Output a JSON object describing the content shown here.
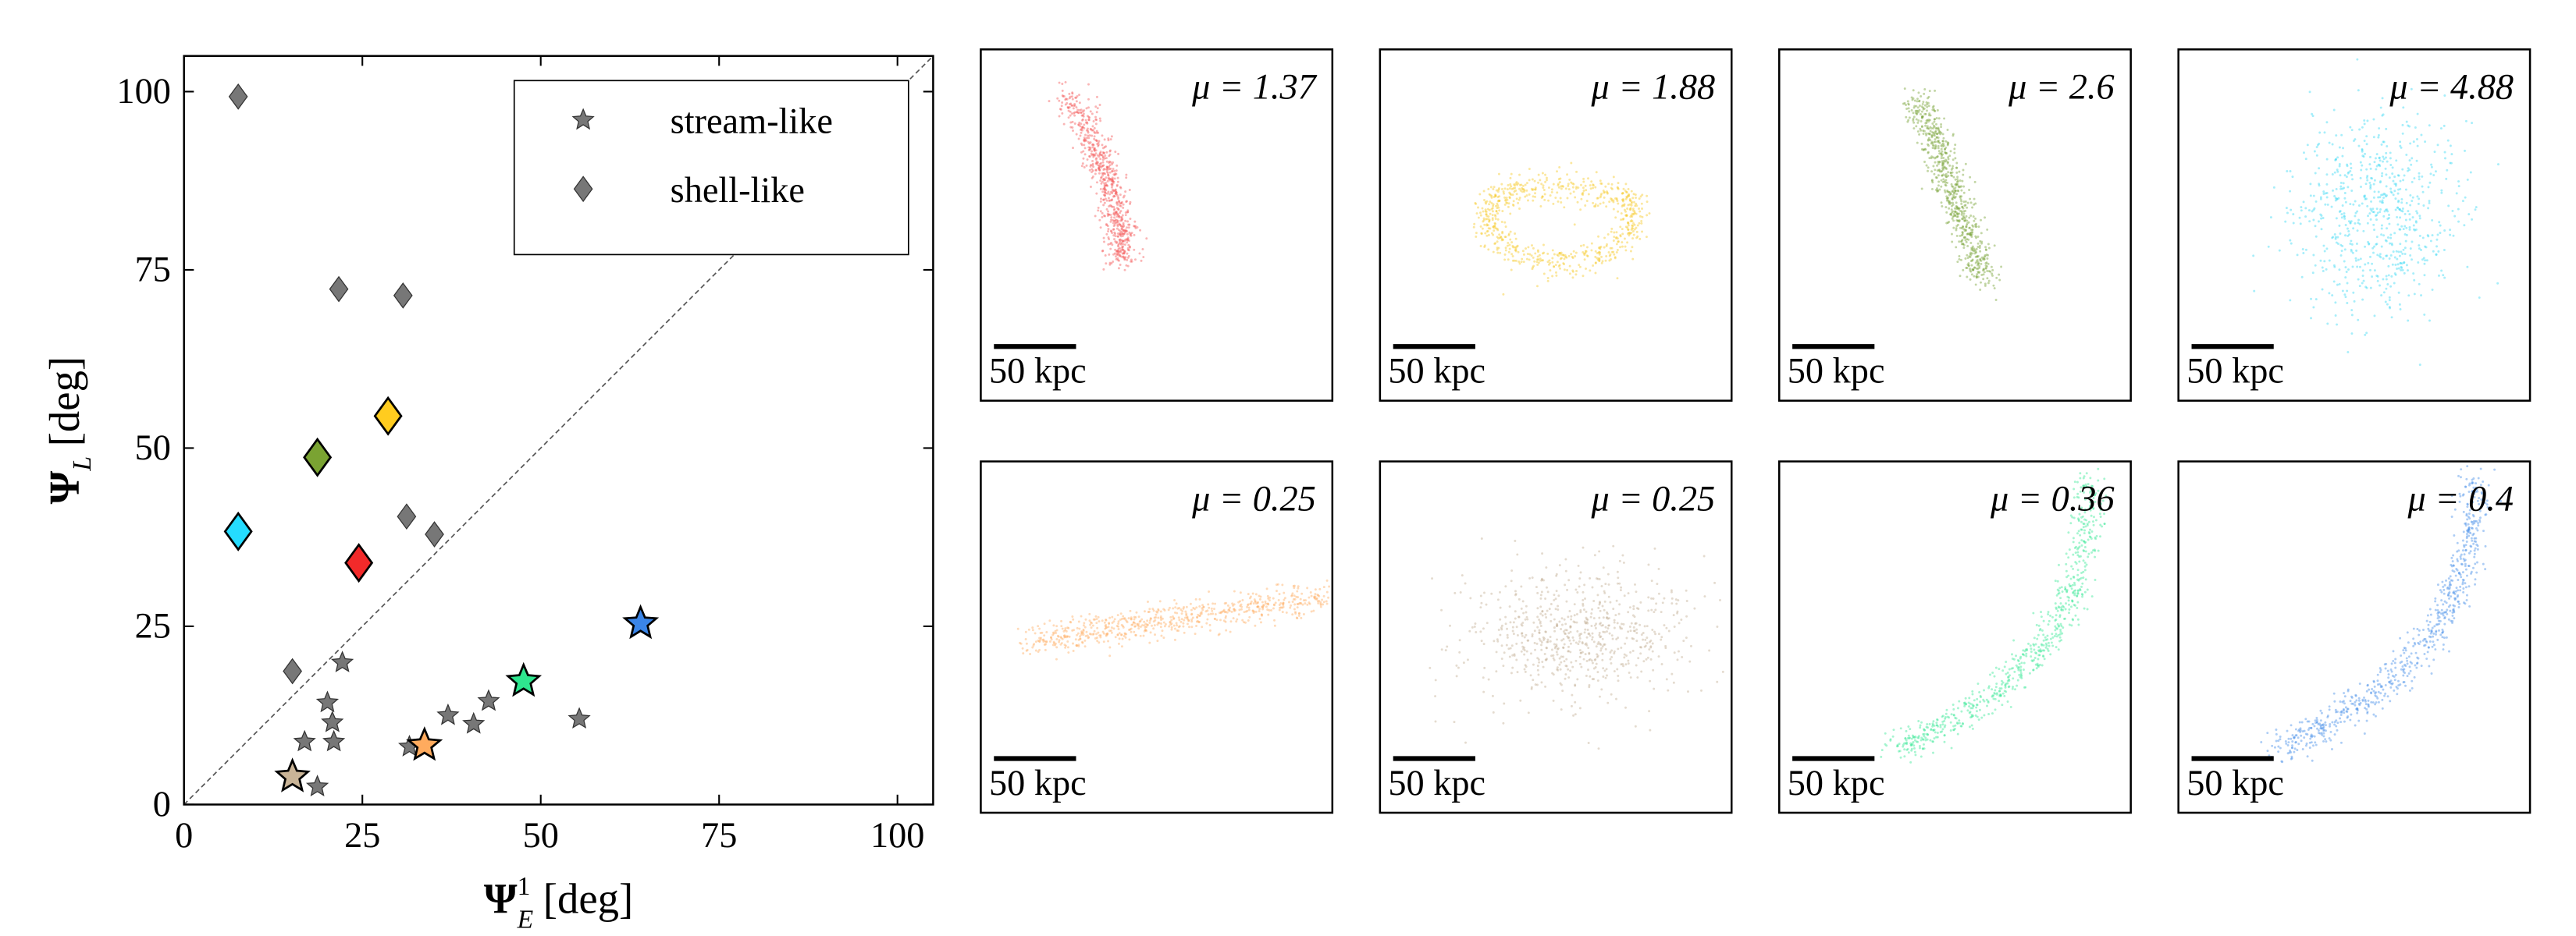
{
  "chart_data": {
    "type": "scatter",
    "xlabel": {
      "symbol": "Ψ",
      "subscript": "E",
      "superscript": "1",
      "unit": "[deg]"
    },
    "ylabel": {
      "symbol": "Ψ",
      "subscript": "L",
      "unit": "[deg]"
    },
    "xlim": [
      0,
      105
    ],
    "ylim": [
      0,
      105
    ],
    "xticks": [
      0,
      25,
      50,
      75,
      100
    ],
    "yticks": [
      0,
      25,
      50,
      75,
      100
    ],
    "diagonal": true,
    "legend": "upper right",
    "series": [
      {
        "name": "stream-like",
        "marker": "star",
        "color": "#555555",
        "x": [
          22.2,
          20.1,
          20.8,
          21.0,
          16.9,
          18.7,
          31.6,
          37.0,
          40.6,
          42.7,
          55.4
        ],
        "y": [
          19.9,
          14.3,
          11.5,
          8.8,
          8.8,
          2.5,
          8.1,
          12.5,
          11.3,
          14.5,
          12.0
        ]
      },
      {
        "name": "shell-like",
        "marker": "diamond",
        "color": "#555555",
        "x": [
          7.6,
          21.7,
          30.7,
          31.2,
          35.1,
          15.2
        ],
        "y": [
          99.3,
          72.3,
          71.4,
          40.4,
          37.9,
          18.7
        ]
      },
      {
        "marker": "star",
        "colors": [
          "#c9b497",
          "#ffab5e",
          "#2ee68f",
          "#3a85e8"
        ],
        "x": [
          15.2,
          33.7,
          47.6,
          64.0
        ],
        "y": [
          3.9,
          8.3,
          17.3,
          25.4
        ]
      },
      {
        "marker": "diamond",
        "colors": [
          "#25dcff",
          "#7aa332",
          "#ffcc1f",
          "#f22a2a"
        ],
        "x": [
          7.6,
          18.7,
          28.6,
          24.5
        ],
        "y": [
          38.3,
          48.7,
          54.5,
          33.9
        ]
      }
    ]
  },
  "panels": [
    {
      "label": "μ = 1.37",
      "scalebar": "50 kpc",
      "color": "#f55a5a"
    },
    {
      "label": "μ = 1.88",
      "scalebar": "50 kpc",
      "color": "#f7c92a"
    },
    {
      "label": "μ = 2.6",
      "scalebar": "50 kpc",
      "color": "#7aa33a"
    },
    {
      "label": "μ = 4.88",
      "scalebar": "50 kpc",
      "color": "#3dd9f5"
    },
    {
      "label": "μ = 0.25",
      "scalebar": "50 kpc",
      "color": "#ffb066"
    },
    {
      "label": "μ = 0.25",
      "scalebar": "50 kpc",
      "color": "#c4b095"
    },
    {
      "label": "μ = 0.36",
      "scalebar": "50 kpc",
      "color": "#3ee89a"
    },
    {
      "label": "μ = 0.4",
      "scalebar": "50 kpc",
      "color": "#4a90e8"
    }
  ]
}
